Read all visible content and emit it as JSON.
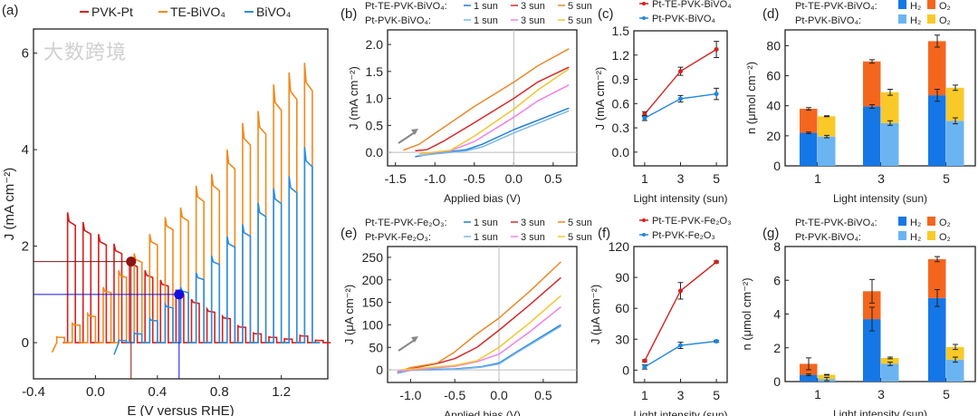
{
  "watermark": "大数跨境",
  "chart_data": [
    {
      "id": "a",
      "panel": "(a)",
      "type": "line",
      "xlabel": "E (V versus RHE)",
      "ylabel": "J (mA cm⁻²)",
      "xlim": [
        -0.4,
        1.5
      ],
      "ylim": [
        -0.75,
        6.5
      ],
      "xticks": [
        -0.4,
        0.0,
        0.4,
        0.8,
        1.2
      ],
      "xticklabels": [
        "-0.4",
        "0.0",
        "0.4",
        "0.8",
        "1.2"
      ],
      "yticks": [
        0,
        2,
        4,
        6
      ],
      "yticklabels": [
        "0",
        "2",
        "4",
        "6"
      ],
      "pulse_period": 0.1,
      "pulse_width": 0.05,
      "series": [
        {
          "name": "PVK-Pt",
          "color": "#d62020",
          "start": -0.18,
          "peaks": [
            2.7,
            2.5,
            2.25,
            2.05,
            1.75,
            1.5,
            1.3,
            1.1,
            0.9,
            0.7,
            0.55,
            0.35,
            0.2,
            0.12,
            0.08,
            0.15,
            0.05
          ]
        },
        {
          "name": "TE-BiVO₄",
          "color": "#f08a1c",
          "start": -0.25,
          "peaks": [
            0.12,
            0.4,
            0.6,
            1.15,
            1.5,
            1.85,
            2.25,
            2.6,
            2.8,
            3.25,
            3.5,
            4.0,
            4.55,
            4.8,
            5.35,
            5.6,
            5.8
          ]
        },
        {
          "name": "BiVO₄",
          "color": "#2a8fe0",
          "start": 0.15,
          "peaks": [
            0.05,
            0.2,
            0.5,
            0.8,
            1.15,
            1.45,
            1.8,
            2.2,
            2.45,
            2.9,
            3.2,
            3.45,
            4.05
          ]
        }
      ],
      "markers": [
        {
          "x": 0.23,
          "y": 1.68,
          "color": "#8b1414"
        },
        {
          "x": 0.54,
          "y": 1.0,
          "color": "#1010e0"
        }
      ]
    },
    {
      "id": "b",
      "panel": "(b)",
      "type": "line",
      "xlabel": "Applied bias (V)",
      "ylabel": "J (mA cm⁻²)",
      "xlim": [
        -1.6,
        0.8
      ],
      "ylim": [
        -0.25,
        2.27
      ],
      "xticks": [
        -1.5,
        -1.0,
        -0.5,
        0.0,
        0.5
      ],
      "xticklabels": [
        "-1.5",
        "-1.0",
        "-0.5",
        "0.0",
        "0.5"
      ],
      "yticks": [
        0,
        0.5,
        1.0,
        1.5,
        2.0
      ],
      "yticklabels": [
        "0.0",
        "0.5",
        "1.0",
        "1.5",
        "2.0"
      ],
      "legend_groups": [
        "Pt-TE-PVK-BiVO₄:",
        "Pt-PVK-BiVO₄:"
      ],
      "series": [
        {
          "group": 0,
          "name": "1 sun",
          "color": "#1f7fd8",
          "points": [
            [
              -1.25,
              -0.08
            ],
            [
              -1.0,
              -0.02
            ],
            [
              -0.6,
              0.05
            ],
            [
              -0.4,
              0.15
            ],
            [
              0,
              0.42
            ],
            [
              0.7,
              0.82
            ]
          ]
        },
        {
          "group": 0,
          "name": "3 sun",
          "color": "#d42a2a",
          "points": [
            [
              -1.25,
              0.03
            ],
            [
              -1.1,
              0.05
            ],
            [
              -0.9,
              0.2
            ],
            [
              -0.5,
              0.55
            ],
            [
              0,
              1.0
            ],
            [
              0.3,
              1.3
            ],
            [
              0.7,
              1.58
            ]
          ]
        },
        {
          "group": 0,
          "name": "5 sun",
          "color": "#e8892a",
          "points": [
            [
              -1.4,
              0.04
            ],
            [
              -1.2,
              0.15
            ],
            [
              -1.0,
              0.35
            ],
            [
              -0.5,
              0.85
            ],
            [
              0,
              1.3
            ],
            [
              0.3,
              1.6
            ],
            [
              0.7,
              1.92
            ]
          ]
        },
        {
          "group": 1,
          "name": "1 sun",
          "color": "#7ab8ec",
          "points": [
            [
              -1.2,
              -0.06
            ],
            [
              -0.6,
              0.03
            ],
            [
              -0.4,
              0.1
            ],
            [
              0,
              0.36
            ],
            [
              0.7,
              0.77
            ]
          ]
        },
        {
          "group": 1,
          "name": "3 sun",
          "color": "#ee82e6",
          "points": [
            [
              -1.2,
              -0.03
            ],
            [
              -0.8,
              0.03
            ],
            [
              -0.5,
              0.2
            ],
            [
              0,
              0.65
            ],
            [
              0.3,
              0.95
            ],
            [
              0.7,
              1.25
            ]
          ]
        },
        {
          "group": 1,
          "name": "5 sun",
          "color": "#f2c531",
          "points": [
            [
              -1.2,
              -0.03
            ],
            [
              -0.8,
              0.04
            ],
            [
              -0.5,
              0.3
            ],
            [
              0,
              0.8
            ],
            [
              0.3,
              1.15
            ],
            [
              0.7,
              1.55
            ]
          ]
        }
      ]
    },
    {
      "id": "c",
      "panel": "(c)",
      "type": "line",
      "xlabel": "Light intensity (sun)",
      "ylabel": "J (mA cm⁻²)",
      "xlim": [
        0.4,
        5.6
      ],
      "ylim": [
        -0.17,
        1.5
      ],
      "xticks": [
        1,
        3,
        5
      ],
      "xticklabels": [
        "1",
        "3",
        "5"
      ],
      "yticks": [
        0,
        0.3,
        0.6,
        0.9,
        1.2,
        1.5
      ],
      "yticklabels": [
        "0.0",
        "0.3",
        "0.6",
        "0.9",
        "1.2",
        "1.5"
      ],
      "series": [
        {
          "name": "Pt-TE-PVK-BiVO₄",
          "color": "#d42020",
          "x": [
            1,
            3,
            5
          ],
          "y": [
            0.47,
            1.0,
            1.27
          ],
          "err": [
            0.03,
            0.05,
            0.1
          ]
        },
        {
          "name": "Pt-PVK-BiVO₄",
          "color": "#1f86e0",
          "x": [
            1,
            3,
            5
          ],
          "y": [
            0.42,
            0.66,
            0.72
          ],
          "err": [
            0.03,
            0.04,
            0.07
          ]
        }
      ]
    },
    {
      "id": "d",
      "panel": "(d)",
      "type": "bar",
      "xlabel": "Light intensity (sun)",
      "ylabel": "n (μmol cm⁻²)",
      "categories": [
        "1",
        "3",
        "5"
      ],
      "ylim": [
        0,
        90.5
      ],
      "yticks": [
        0,
        20,
        40,
        60,
        80
      ],
      "yticklabels": [
        "0",
        "20",
        "40",
        "60",
        "80"
      ],
      "legend_groups": [
        "Pt-TE-PVK-BiVO₄:",
        "Pt-PVK-BiVO₄:"
      ],
      "series": [
        {
          "group": "Pt-TE-PVK-BiVO₄",
          "h2_label": "H₂",
          "o2_label": "O₂",
          "h2_color": "#1577e6",
          "o2_color": "#f4661e",
          "h2": [
            22,
            39.5,
            47
          ],
          "h2_err": [
            0.5,
            1.2,
            4
          ],
          "o2": [
            16,
            30,
            36
          ],
          "total_err": [
            0.8,
            1.2,
            4
          ]
        },
        {
          "group": "Pt-PVK-BiVO₄",
          "h2_label": "H₂",
          "o2_label": "O₂",
          "h2_color": "#6bb4f2",
          "o2_color": "#f8c928",
          "h2": [
            19.5,
            28.5,
            30
          ],
          "h2_err": [
            0.8,
            1.5,
            2
          ],
          "o2": [
            13.5,
            20.5,
            22
          ],
          "total_err": [
            0.3,
            2,
            1.8
          ]
        }
      ]
    },
    {
      "id": "e",
      "panel": "(e)",
      "type": "line",
      "xlabel": "Applied bias (V)",
      "ylabel": "J (μA cm⁻²)",
      "xlim": [
        -1.26,
        0.88
      ],
      "ylim": [
        -28,
        274
      ],
      "xticks": [
        -1.0,
        -0.5,
        0.0,
        0.5
      ],
      "xticklabels": [
        "-1.0",
        "-0.5",
        "0.0",
        "0.5"
      ],
      "yticks": [
        0,
        50,
        100,
        150,
        200,
        250
      ],
      "yticklabels": [
        "0",
        "50",
        "100",
        "150",
        "200",
        "250"
      ],
      "legend_groups": [
        "Pt-TE-PVK-Fe₂O₃:",
        "Pt-PVK-Fe₂O₃:"
      ],
      "series": [
        {
          "group": 0,
          "name": "1 sun",
          "color": "#1f7fd8",
          "points": [
            [
              -1.15,
              -5
            ],
            [
              -1.0,
              0
            ],
            [
              -0.5,
              2
            ],
            [
              -0.2,
              7
            ],
            [
              0,
              15
            ],
            [
              0.2,
              40
            ],
            [
              0.7,
              100
            ]
          ]
        },
        {
          "group": 0,
          "name": "3 sun",
          "color": "#d42a2a",
          "points": [
            [
              -1.15,
              -5
            ],
            [
              -1.0,
              3
            ],
            [
              -0.7,
              14
            ],
            [
              -0.5,
              25
            ],
            [
              -0.25,
              50
            ],
            [
              0,
              88
            ],
            [
              0.35,
              145
            ],
            [
              0.7,
              205
            ]
          ]
        },
        {
          "group": 0,
          "name": "5 sun",
          "color": "#e8892a",
          "points": [
            [
              -1.15,
              -5
            ],
            [
              -1.0,
              5
            ],
            [
              -0.7,
              15
            ],
            [
              -0.5,
              40
            ],
            [
              -0.25,
              80
            ],
            [
              0,
              115
            ],
            [
              0.35,
              175
            ],
            [
              0.7,
              240
            ]
          ]
        },
        {
          "group": 1,
          "name": "1 sun",
          "color": "#7ab8ec",
          "points": [
            [
              -1.15,
              -8
            ],
            [
              -1.0,
              -1
            ],
            [
              -0.5,
              1
            ],
            [
              -0.2,
              6
            ],
            [
              0,
              13
            ],
            [
              0.2,
              38
            ],
            [
              0.7,
              97
            ]
          ]
        },
        {
          "group": 1,
          "name": "3 sun",
          "color": "#ee82e6",
          "points": [
            [
              -1.15,
              -3
            ],
            [
              -0.5,
              8
            ],
            [
              -0.25,
              18
            ],
            [
              0,
              35
            ],
            [
              0.35,
              85
            ],
            [
              0.7,
              140
            ]
          ]
        },
        {
          "group": 1,
          "name": "5 sun",
          "color": "#f2c531",
          "points": [
            [
              -1.1,
              0
            ],
            [
              -0.5,
              10
            ],
            [
              -0.25,
              20
            ],
            [
              0,
              50
            ],
            [
              0.35,
              105
            ],
            [
              0.7,
              165
            ]
          ]
        }
      ]
    },
    {
      "id": "f",
      "panel": "(f)",
      "type": "line",
      "xlabel": "Light intensity (sun)",
      "ylabel": "J (μA cm⁻²)",
      "xlim": [
        0.4,
        5.6
      ],
      "ylim": [
        -12,
        120
      ],
      "xticks": [
        1,
        3,
        5
      ],
      "xticklabels": [
        "1",
        "3",
        "5"
      ],
      "yticks": [
        0,
        30,
        60,
        90,
        120
      ],
      "yticklabels": [
        "0",
        "30",
        "60",
        "90",
        "120"
      ],
      "series": [
        {
          "name": "Pt-TE-PVK-Fe₂O₃",
          "color": "#d42020",
          "x": [
            1,
            3,
            5
          ],
          "y": [
            9,
            77,
            105
          ],
          "err": [
            1,
            8,
            1
          ]
        },
        {
          "name": "Pt-PVK-Fe₂O₃",
          "color": "#1f86e0",
          "x": [
            1,
            3,
            5
          ],
          "y": [
            3,
            24,
            28
          ],
          "err": [
            2,
            3,
            1
          ]
        }
      ]
    },
    {
      "id": "g",
      "panel": "(g)",
      "type": "bar",
      "xlabel": "Light intensity (sun)",
      "ylabel": "n (μmol cm⁻²)",
      "categories": [
        "1",
        "3",
        "5"
      ],
      "ylim": [
        0,
        8
      ],
      "yticks": [
        0,
        2,
        4,
        6,
        8
      ],
      "yticklabels": [
        "0",
        "2",
        "4",
        "6",
        "8"
      ],
      "legend_groups": [
        "Pt-TE-PVK-BiVO₄:",
        "Pt-PVK-BiVO₄:"
      ],
      "series": [
        {
          "group": "Pt-TE-PVK-BiVO₄",
          "h2_label": "H₂",
          "o2_label": "O₂",
          "h2_color": "#1577e6",
          "o2_color": "#f4661e",
          "h2": [
            0.4,
            3.7,
            4.95
          ],
          "h2_err": [
            0.05,
            0.7,
            0.5
          ],
          "o2": [
            0.65,
            1.65,
            2.3
          ],
          "total_err": [
            0.35,
            0.7,
            0.15
          ]
        },
        {
          "group": "Pt-PVK-BiVO₄",
          "h2_label": "H₂",
          "o2_label": "O₂",
          "h2_color": "#6bb4f2",
          "o2_color": "#f8c928",
          "h2": [
            0.15,
            1.05,
            1.3
          ],
          "h2_err": [
            0.1,
            0.1,
            0.15
          ],
          "o2": [
            0.25,
            0.35,
            0.75
          ],
          "total_err": [
            0.02,
            0.05,
            0.15
          ]
        }
      ]
    }
  ]
}
